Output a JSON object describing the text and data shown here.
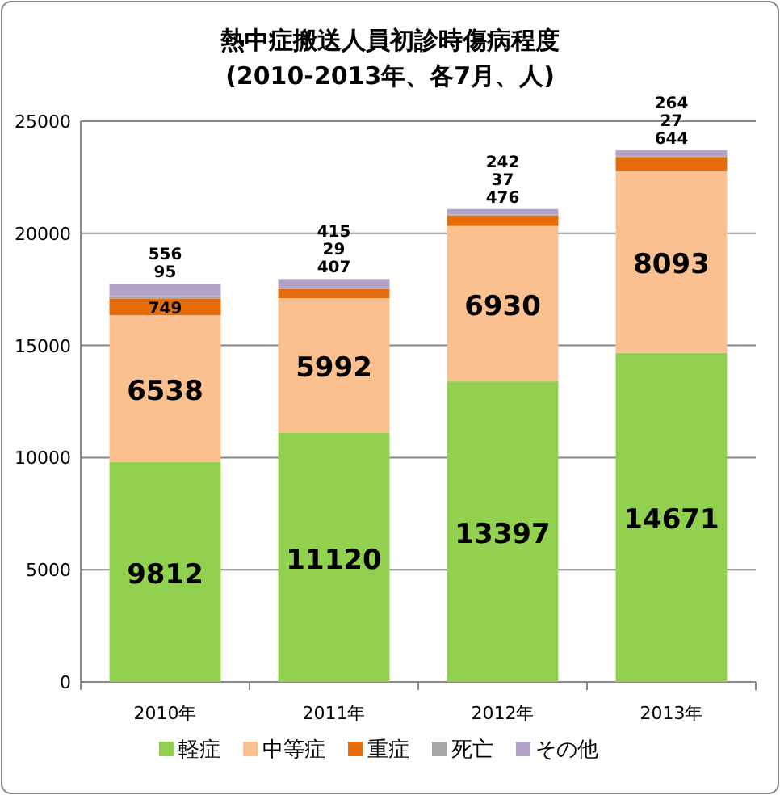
{
  "chart_data": {
    "type": "bar",
    "title": "熱中症搬送人員初診時傷病程度",
    "subtitle": "(2010-2013年、各7月、人)",
    "categories": [
      "2010年",
      "2011年",
      "2012年",
      "2013年"
    ],
    "stacked": true,
    "data_labels": true,
    "grid": "y",
    "legend": "bottom",
    "ylim": [
      0,
      25000
    ],
    "yticks": [
      0,
      5000,
      10000,
      15000,
      20000,
      25000
    ],
    "series": [
      {
        "name": "軽症",
        "color": "#92d050",
        "values": [
          9812,
          11120,
          13397,
          14671
        ]
      },
      {
        "name": "中等症",
        "color": "#fac090",
        "values": [
          6538,
          5992,
          6930,
          8093
        ]
      },
      {
        "name": "重症",
        "color": "#e46c0a",
        "values": [
          749,
          407,
          476,
          644
        ]
      },
      {
        "name": "死亡",
        "color": "#a5a5a5",
        "values": [
          95,
          29,
          37,
          27
        ]
      },
      {
        "name": "その他",
        "color": "#b3a2c7",
        "values": [
          556,
          415,
          242,
          264
        ]
      }
    ]
  }
}
